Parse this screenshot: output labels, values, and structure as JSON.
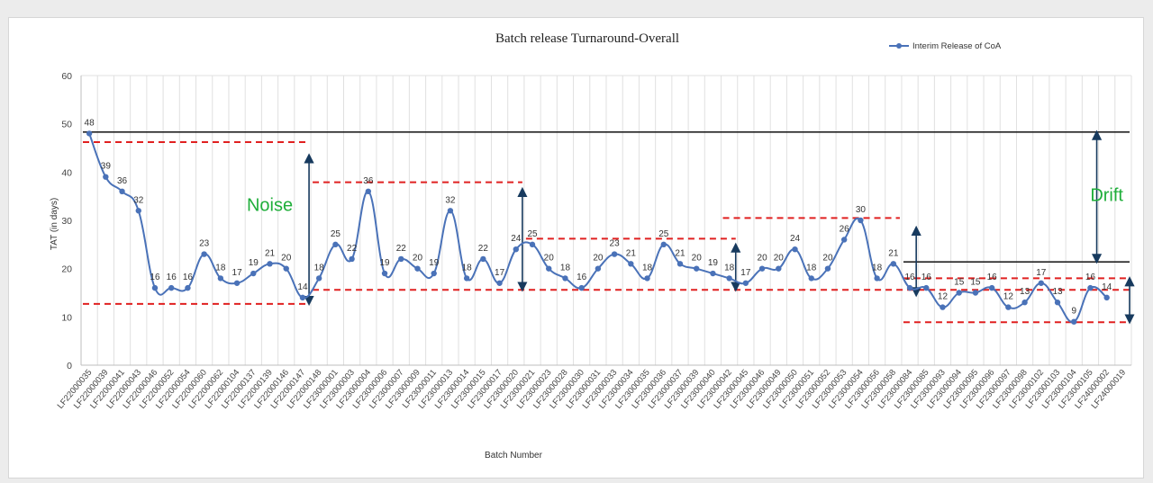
{
  "chart_data": {
    "type": "line",
    "title": "Batch release Turnaround-Overall",
    "xlabel": "Batch Number",
    "ylabel": "TAT (in days)",
    "ylim": [
      0,
      60
    ],
    "yticks": [
      0,
      10,
      20,
      30,
      40,
      50,
      60
    ],
    "grid": "vertical",
    "legend_position": "top-right",
    "series_color": "#4a72b8",
    "categories": [
      "LF22000035",
      "LF22000039",
      "LF22000041",
      "LF22000043",
      "LF22000046",
      "LF22000052",
      "LF22000054",
      "LF22000060",
      "LF22000062",
      "LF22000104",
      "LF22000137",
      "LF22000139",
      "LF22000146",
      "LF22000147",
      "LF22000148",
      "LF23000001",
      "LF23000003",
      "LF23000004",
      "LF23000006",
      "LF23000007",
      "LF23000009",
      "LF23000011",
      "LF23000013",
      "LF23000014",
      "LF23000015",
      "LF23000017",
      "LF23000020",
      "LF23000021",
      "LF23000023",
      "LF23000028",
      "LF23000030",
      "LF23000031",
      "LF23000033",
      "LF23000034",
      "LF23000035",
      "LF23000036",
      "LF23000037",
      "LF23000039",
      "LF23000040",
      "LF23000042",
      "LF23000045",
      "LF23000046",
      "LF23000049",
      "LF23000050",
      "LF23000051",
      "LF23000052",
      "LF23000053",
      "LF23000054",
      "LF23000056",
      "LF23000058",
      "LF23000084",
      "LF23000085",
      "LF23000093",
      "LF23000094",
      "LF23000095",
      "LF23000096",
      "LF23000097",
      "LF23000098",
      "LF23000102",
      "LF23000103",
      "LF23000104",
      "LF23000105",
      "LF24000002",
      "LF24000019"
    ],
    "series": [
      {
        "name": "Interim Release of CoA",
        "values": [
          48,
          39,
          36,
          32,
          16,
          16,
          16,
          23,
          18,
          17,
          19,
          21,
          20,
          14,
          18,
          25,
          22,
          36,
          19,
          22,
          20,
          19,
          32,
          18,
          22,
          17,
          24,
          25,
          20,
          18,
          16,
          20,
          23,
          21,
          18,
          25,
          21,
          20,
          19,
          18,
          17,
          20,
          20,
          24,
          18,
          20,
          26,
          30,
          18,
          21,
          16,
          16,
          12,
          15,
          15,
          16,
          12,
          13,
          17,
          13,
          9,
          16,
          14,
          null
        ]
      }
    ],
    "reference_lines": [
      {
        "style": "solid",
        "color": "#222222",
        "y": 48.3,
        "from": "LF22000035",
        "to": "LF24000019"
      },
      {
        "style": "solid",
        "color": "#222222",
        "y": 21.4,
        "from": "LF23000084",
        "to": "LF24000019"
      },
      {
        "style": "dashed",
        "color": "#e02020",
        "y": 46.2,
        "from": "LF22000035",
        "to": "LF22000147"
      },
      {
        "style": "dashed",
        "color": "#e02020",
        "y": 12.7,
        "from": "LF22000035",
        "to": "LF22000147"
      },
      {
        "style": "dashed",
        "color": "#e02020",
        "y": 37.9,
        "from": "LF22000148",
        "to": "LF23000020"
      },
      {
        "style": "dashed",
        "color": "#e02020",
        "y": 15.6,
        "from": "LF22000148",
        "to": "LF24000019"
      },
      {
        "style": "dashed",
        "color": "#e02020",
        "y": 26.2,
        "from": "LF23000021",
        "to": "LF23000042"
      },
      {
        "style": "dashed",
        "color": "#e02020",
        "y": 30.5,
        "from": "LF23000042",
        "to": "LF23000058"
      },
      {
        "style": "dashed",
        "color": "#e02020",
        "y": 18.0,
        "from": "LF23000084",
        "to": "LF24000019"
      },
      {
        "style": "dashed",
        "color": "#e02020",
        "y": 8.9,
        "from": "LF23000084",
        "to": "LF24000019"
      }
    ],
    "arrows": [
      {
        "at": "LF22000147",
        "from_y": 12.7,
        "to_y": 43.5
      },
      {
        "at": "LF23000020",
        "from_y": 15.6,
        "to_y": 36.5
      },
      {
        "at": "LF23000042",
        "from_y": 15.6,
        "to_y": 25.0
      },
      {
        "at": "LF23000084",
        "from_y": 14.5,
        "to_y": 28.5
      },
      {
        "at": "LF23000105",
        "from_y": 21.4,
        "to_y": 48.3
      },
      {
        "at": "LF24000019",
        "from_y": 8.9,
        "to_y": 18.0
      }
    ],
    "annotations": [
      {
        "text": "Noise",
        "x": "LF22000139",
        "y": 32,
        "color": "#1fae3a"
      },
      {
        "text": "Drift",
        "x": "LF24000002",
        "y": 34,
        "color": "#1fae3a"
      }
    ]
  }
}
